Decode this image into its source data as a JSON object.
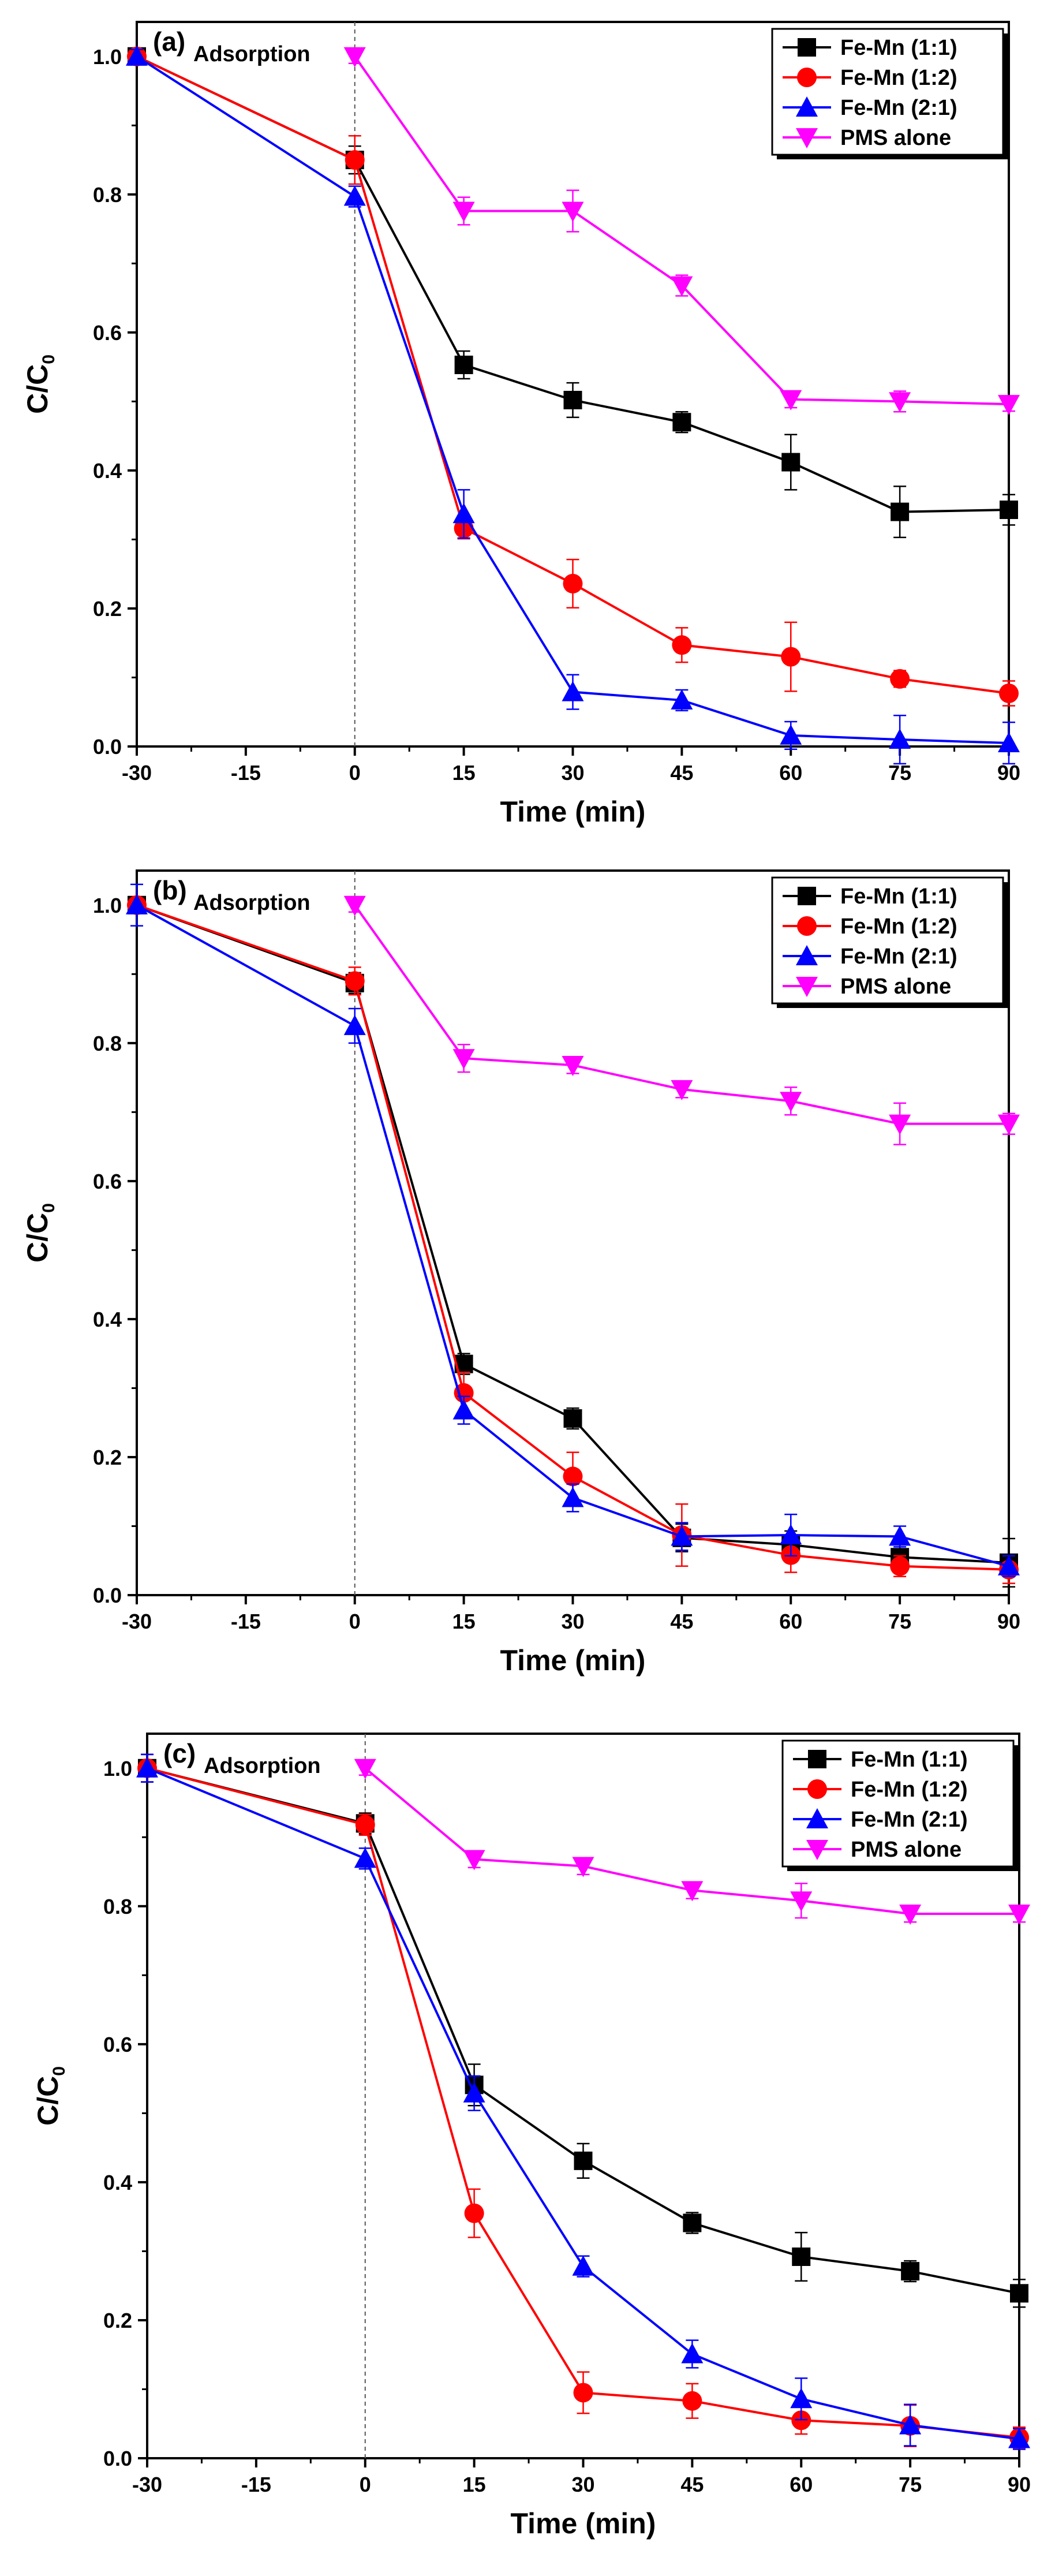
{
  "chart_data": [
    {
      "type": "line",
      "panel_label": "(a)",
      "annotation": "Adsorption",
      "xlabel": "Time (min)",
      "ylabel": "C/C",
      "ylabel_subscript": "0",
      "xlim": [
        -30,
        90
      ],
      "ylim": [
        0,
        1.05
      ],
      "x_ticks": [
        -30,
        -15,
        0,
        15,
        30,
        45,
        60,
        75,
        90
      ],
      "x_tick_labels": [
        "-30",
        "-15",
        "0",
        "15",
        "30",
        "45",
        "60",
        "75",
        "90"
      ],
      "y_ticks": [
        0,
        0.2,
        0.4,
        0.6,
        0.8,
        1.0
      ],
      "y_tick_labels": [
        "0.0",
        "0.2",
        "0.4",
        "0.6",
        "0.8",
        "1.0"
      ],
      "vline_x": 0,
      "legend_position": "top-right",
      "series": [
        {
          "name": "Fe-Mn (1:1)",
          "color": "#000000",
          "marker": "square",
          "x": [
            -30,
            0,
            15,
            30,
            45,
            60,
            75,
            90
          ],
          "values": [
            1.0,
            0.85,
            0.553,
            0.502,
            0.47,
            0.412,
            0.34,
            0.343
          ],
          "errors": [
            0.01,
            0.02,
            0.02,
            0.025,
            0.015,
            0.04,
            0.037,
            0.022
          ]
        },
        {
          "name": "Fe-Mn (1:2)",
          "color": "#ff0000",
          "marker": "circle",
          "x": [
            -30,
            0,
            15,
            30,
            45,
            60,
            75,
            90
          ],
          "values": [
            1.0,
            0.85,
            0.316,
            0.236,
            0.147,
            0.13,
            0.098,
            0.077
          ],
          "errors": [
            0.01,
            0.035,
            0.015,
            0.035,
            0.025,
            0.05,
            0.012,
            0.018
          ]
        },
        {
          "name": "Fe-Mn (2:1)",
          "color": "#0000ff",
          "marker": "triangle-up",
          "x": [
            -30,
            0,
            15,
            30,
            45,
            60,
            75,
            90
          ],
          "values": [
            1.0,
            0.797,
            0.337,
            0.079,
            0.067,
            0.016,
            0.01,
            0.005
          ],
          "errors": [
            0.01,
            0.015,
            0.035,
            0.025,
            0.015,
            0.02,
            0.035,
            0.03
          ]
        },
        {
          "name": "PMS alone",
          "color": "#ff00ff",
          "marker": "triangle-down",
          "x": [
            0,
            15,
            30,
            45,
            60,
            75,
            90
          ],
          "values": [
            1.0,
            0.776,
            0.776,
            0.668,
            0.503,
            0.5,
            0.496
          ],
          "errors": [
            0.01,
            0.02,
            0.03,
            0.015,
            0.012,
            0.015,
            0.01
          ]
        }
      ]
    },
    {
      "type": "line",
      "panel_label": "(b)",
      "annotation": "Adsorption",
      "xlabel": "Time (min)",
      "ylabel": "C/C",
      "ylabel_subscript": "0",
      "xlim": [
        -30,
        90
      ],
      "ylim": [
        0,
        1.05
      ],
      "x_ticks": [
        -30,
        -15,
        0,
        15,
        30,
        45,
        60,
        75,
        90
      ],
      "x_tick_labels": [
        "-30",
        "-15",
        "0",
        "15",
        "30",
        "45",
        "60",
        "75",
        "90"
      ],
      "y_ticks": [
        0,
        0.2,
        0.4,
        0.6,
        0.8,
        1.0
      ],
      "y_tick_labels": [
        "0.0",
        "0.2",
        "0.4",
        "0.6",
        "0.8",
        "1.0"
      ],
      "vline_x": 0,
      "legend_position": "top-right",
      "series": [
        {
          "name": "Fe-Mn (1:1)",
          "color": "#000000",
          "marker": "square",
          "x": [
            -30,
            0,
            15,
            30,
            45,
            60,
            75,
            90
          ],
          "values": [
            1.0,
            0.887,
            0.335,
            0.256,
            0.083,
            0.073,
            0.055,
            0.047
          ],
          "errors": [
            0.01,
            0.015,
            0.015,
            0.015,
            0.02,
            0.02,
            0.02,
            0.035
          ]
        },
        {
          "name": "Fe-Mn (1:2)",
          "color": "#ff0000",
          "marker": "circle",
          "x": [
            -30,
            0,
            15,
            30,
            45,
            60,
            75,
            90
          ],
          "values": [
            1.0,
            0.89,
            0.293,
            0.172,
            0.087,
            0.058,
            0.042,
            0.037
          ],
          "errors": [
            0.01,
            0.02,
            0.03,
            0.035,
            0.045,
            0.025,
            0.015,
            0.02
          ]
        },
        {
          "name": "Fe-Mn (2:1)",
          "color": "#0000ff",
          "marker": "triangle-up",
          "x": [
            -30,
            0,
            15,
            30,
            45,
            60,
            75,
            90
          ],
          "values": [
            1.0,
            0.825,
            0.268,
            0.141,
            0.085,
            0.087,
            0.085,
            0.042
          ],
          "errors": [
            0.03,
            0.025,
            0.02,
            0.02,
            0.02,
            0.03,
            0.015,
            0.015
          ]
        },
        {
          "name": "PMS alone",
          "color": "#ff00ff",
          "marker": "triangle-down",
          "x": [
            0,
            15,
            30,
            45,
            60,
            75,
            90
          ],
          "values": [
            1.0,
            0.778,
            0.768,
            0.733,
            0.716,
            0.683,
            0.683
          ],
          "errors": [
            0.01,
            0.02,
            0.012,
            0.012,
            0.02,
            0.03,
            0.015
          ]
        }
      ]
    },
    {
      "type": "line",
      "panel_label": "(c)",
      "annotation": "Adsorption",
      "xlabel": "Time (min)",
      "ylabel": "C/C",
      "ylabel_subscript": "0",
      "xlim": [
        -30,
        90
      ],
      "ylim": [
        0,
        1.05
      ],
      "x_ticks": [
        -30,
        -15,
        0,
        15,
        30,
        45,
        60,
        75,
        90
      ],
      "x_tick_labels": [
        "-30",
        "-15",
        "0",
        "15",
        "30",
        "45",
        "60",
        "75",
        "90"
      ],
      "y_ticks": [
        0,
        0.2,
        0.4,
        0.6,
        0.8,
        1.0
      ],
      "y_tick_labels": [
        "0.0",
        "0.2",
        "0.4",
        "0.6",
        "0.8",
        "1.0"
      ],
      "vline_x": 0,
      "legend_position": "top-right",
      "series": [
        {
          "name": "Fe-Mn (1:1)",
          "color": "#000000",
          "marker": "square",
          "x": [
            -30,
            0,
            15,
            30,
            45,
            60,
            75,
            90
          ],
          "values": [
            1.0,
            0.92,
            0.541,
            0.431,
            0.341,
            0.292,
            0.271,
            0.239
          ],
          "errors": [
            0.02,
            0.015,
            0.03,
            0.025,
            0.015,
            0.035,
            0.015,
            0.02
          ]
        },
        {
          "name": "Fe-Mn (1:2)",
          "color": "#ff0000",
          "marker": "circle",
          "x": [
            -30,
            0,
            15,
            30,
            45,
            60,
            75,
            90
          ],
          "values": [
            1.0,
            0.918,
            0.355,
            0.095,
            0.083,
            0.055,
            0.047,
            0.03
          ],
          "errors": [
            0.02,
            0.015,
            0.035,
            0.03,
            0.025,
            0.02,
            0.03,
            0.015
          ]
        },
        {
          "name": "Fe-Mn (2:1)",
          "color": "#0000ff",
          "marker": "triangle-up",
          "x": [
            -30,
            0,
            15,
            30,
            45,
            60,
            75,
            90
          ],
          "values": [
            1.0,
            0.869,
            0.529,
            0.278,
            0.151,
            0.086,
            0.048,
            0.028
          ],
          "errors": [
            0.02,
            0.015,
            0.025,
            0.015,
            0.02,
            0.03,
            0.03,
            0.015
          ]
        },
        {
          "name": "PMS alone",
          "color": "#ff00ff",
          "marker": "triangle-down",
          "x": [
            0,
            15,
            30,
            45,
            60,
            75,
            90
          ],
          "values": [
            1.0,
            0.868,
            0.858,
            0.823,
            0.808,
            0.789,
            0.789
          ],
          "errors": [
            0.01,
            0.012,
            0.012,
            0.012,
            0.025,
            0.012,
            0.012
          ]
        }
      ]
    }
  ]
}
